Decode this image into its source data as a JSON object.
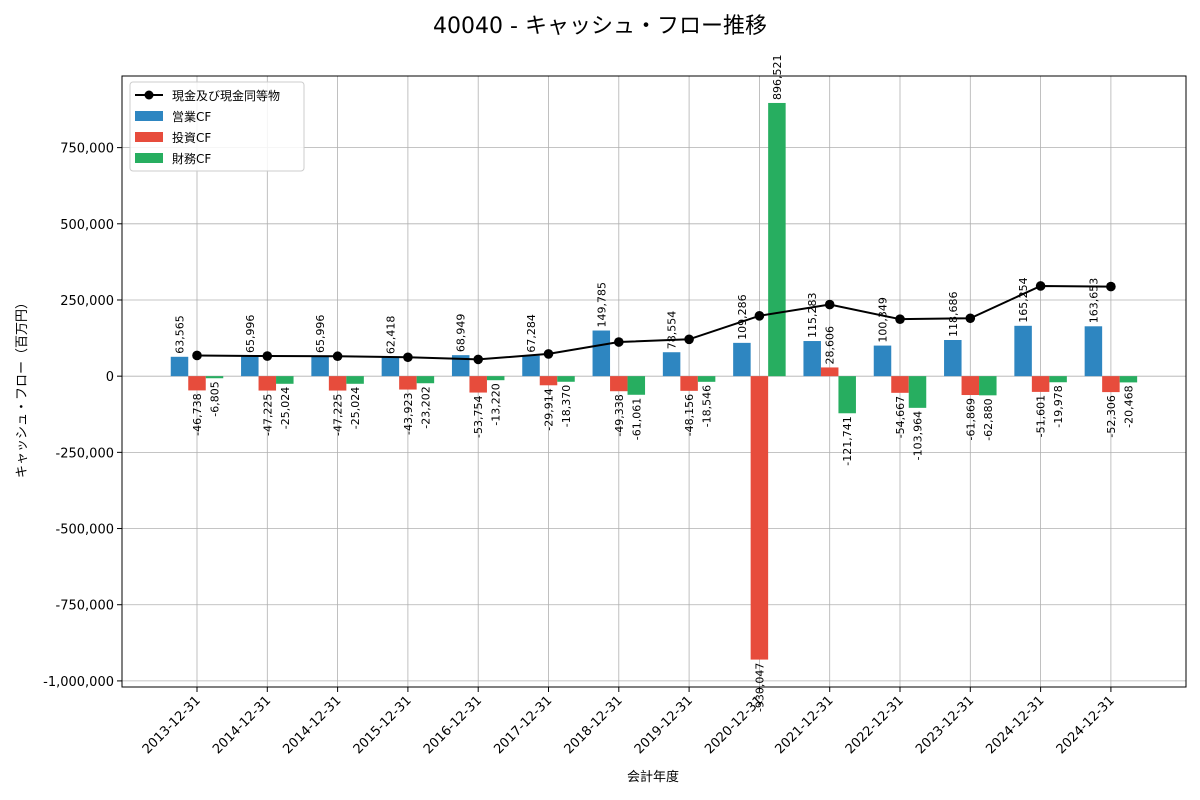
{
  "chart_data": {
    "type": "bar",
    "title": "40040 - キャッシュ・フロー推移",
    "xlabel": "会計年度",
    "ylabel": "キャッシュ・フロー（百万円）",
    "ylim": [
      -1020000,
      985000
    ],
    "yticks": [
      -1000000,
      -750000,
      -500000,
      -250000,
      0,
      250000,
      500000,
      750000
    ],
    "ytick_labels": [
      "-1,000,000",
      "-750,000",
      "-500,000",
      "-250,000",
      "0",
      "250,000",
      "500,000",
      "750,000"
    ],
    "grid": true,
    "legend_position": "top-left",
    "categories": [
      "2013-12-31",
      "2014-12-31",
      "2014-12-31",
      "2015-12-31",
      "2016-12-31",
      "2017-12-31",
      "2018-12-31",
      "2019-12-31",
      "2020-12-31",
      "2021-12-31",
      "2022-12-31",
      "2023-12-31",
      "2024-12-31",
      "2024-12-31"
    ],
    "series": [
      {
        "name": "営業CF",
        "color": "#2E86C1",
        "values": [
          63565,
          65996,
          65996,
          62418,
          68949,
          67284,
          149785,
          78554,
          109286,
          115283,
          100349,
          118686,
          165254,
          163653
        ],
        "labels": [
          "63,565",
          "65,996",
          "65,996",
          "62,418",
          "68,949",
          "67,284",
          "149,785",
          "78,554",
          "109,286",
          "115,283",
          "100,349",
          "118,686",
          "165,254",
          "163,653"
        ]
      },
      {
        "name": "投資CF",
        "color": "#E74C3C",
        "values": [
          -46738,
          -47225,
          -47225,
          -43923,
          -53754,
          -29914,
          -49338,
          -48156,
          -930047,
          28606,
          -54667,
          -61869,
          -51601,
          -52306
        ],
        "labels": [
          "-46,738",
          "-47,225",
          "-47,225",
          "-43,923",
          "-53,754",
          "-29,914",
          "-49,338",
          "-48,156",
          "-930,047",
          "28,606",
          "-54,667",
          "-61,869",
          "-51,601",
          "-52,306"
        ]
      },
      {
        "name": "財務CF",
        "color": "#27AE60",
        "values": [
          -6805,
          -25024,
          -25024,
          -23202,
          -13220,
          -18370,
          -61061,
          -18546,
          896521,
          -121741,
          -103964,
          -62880,
          -19978,
          -20468
        ],
        "labels": [
          "-6,805",
          "-25,024",
          "-25,024",
          "-23,202",
          "-13,220",
          "-18,370",
          "-61,061",
          "-18,546",
          "896,521",
          "-121,741",
          "-103,964",
          "-62,880",
          "-19,978",
          "-20,468"
        ]
      }
    ],
    "line": {
      "name": "現金及び現金同等物",
      "color": "#000000",
      "values": [
        68000,
        66000,
        65500,
        62000,
        55000,
        73000,
        112000,
        121000,
        198000,
        235000,
        187000,
        190000,
        296000,
        294000
      ]
    }
  }
}
